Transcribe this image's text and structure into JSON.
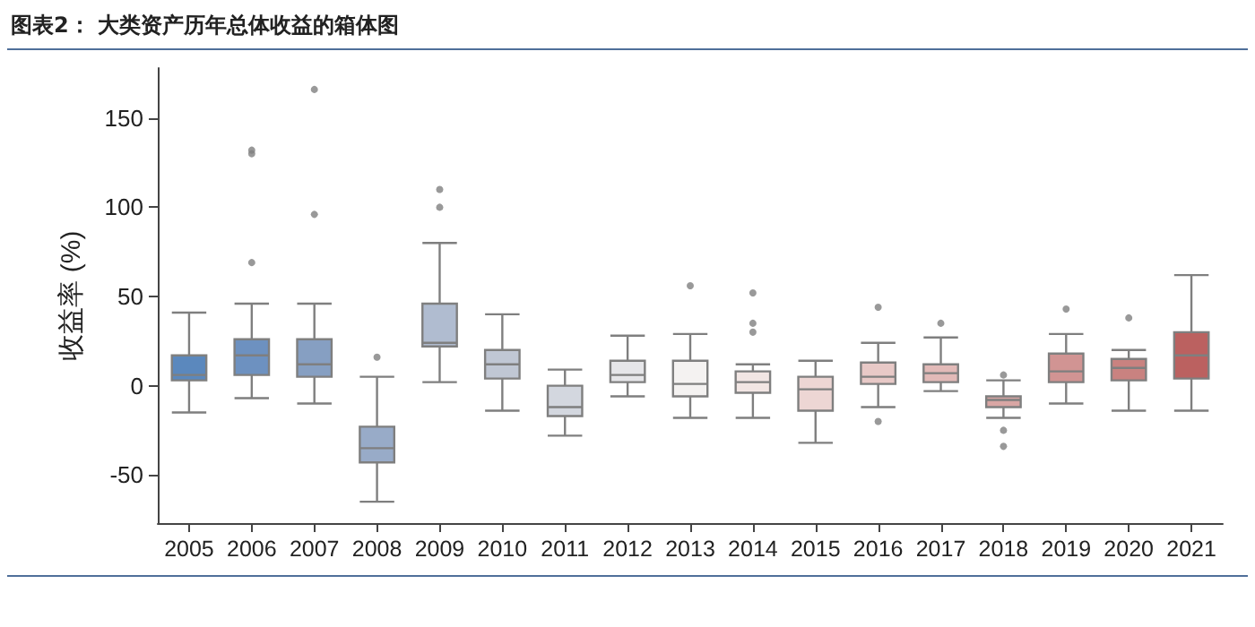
{
  "chart_data": {
    "type": "box",
    "title": "图表2：  大类资产历年总体收益的箱体图",
    "ylabel": "收益率 (%)",
    "categories": [
      "2005",
      "2006",
      "2007",
      "2008",
      "2009",
      "2010",
      "2011",
      "2012",
      "2013",
      "2014",
      "2015",
      "2016",
      "2017",
      "2018",
      "2019",
      "2020",
      "2021"
    ],
    "colors": [
      "#5b88bd",
      "#6d91c0",
      "#869fc2",
      "#98abc8",
      "#b0bcd0",
      "#c0c7d4",
      "#d3d7df",
      "#e6e6e9",
      "#f4f2f1",
      "#f2e6e4",
      "#edd6d4",
      "#e8c9c7",
      "#e2bab8",
      "#d9a6a4",
      "#d19493",
      "#c98280",
      "#bb6160"
    ],
    "boxes": [
      {
        "low": -15,
        "q1": 3,
        "median": 6,
        "q3": 17,
        "high": 41
      },
      {
        "low": -7,
        "q1": 6,
        "median": 17,
        "q3": 26,
        "high": 46,
        "outliers": [
          69,
          130,
          132
        ]
      },
      {
        "low": -10,
        "q1": 5,
        "median": 12,
        "q3": 26,
        "high": 46,
        "outliers": [
          96,
          166
        ]
      },
      {
        "low": -65,
        "q1": -43,
        "median": -35,
        "q3": -23,
        "high": 5,
        "outliers": [
          16
        ]
      },
      {
        "low": 2,
        "q1": 22,
        "median": 24,
        "q3": 46,
        "high": 80,
        "outliers": [
          100,
          110
        ]
      },
      {
        "low": -14,
        "q1": 4,
        "median": 12,
        "q3": 20,
        "high": 40
      },
      {
        "low": -28,
        "q1": -17,
        "median": -12,
        "q3": 0,
        "high": 9
      },
      {
        "low": -6,
        "q1": 2,
        "median": 6,
        "q3": 14,
        "high": 28
      },
      {
        "low": -18,
        "q1": -6,
        "median": 1,
        "q3": 14,
        "high": 29,
        "outliers": [
          56
        ]
      },
      {
        "low": -18,
        "q1": -4,
        "median": 2,
        "q3": 8,
        "high": 12,
        "outliers": [
          30,
          35,
          52
        ]
      },
      {
        "low": -32,
        "q1": -14,
        "median": -2,
        "q3": 5,
        "high": 14
      },
      {
        "low": -12,
        "q1": 1,
        "median": 5,
        "q3": 13,
        "high": 24,
        "outliers": [
          44,
          -20
        ]
      },
      {
        "low": -3,
        "q1": 2,
        "median": 7,
        "q3": 12,
        "high": 27,
        "outliers": [
          35
        ]
      },
      {
        "low": -18,
        "q1": -12,
        "median": -8,
        "q3": -6,
        "high": 3,
        "outliers": [
          6,
          -25,
          -34
        ]
      },
      {
        "low": -10,
        "q1": 2,
        "median": 8,
        "q3": 18,
        "high": 29,
        "outliers": [
          43
        ]
      },
      {
        "low": -14,
        "q1": 3,
        "median": 10,
        "q3": 15,
        "high": 20,
        "outliers": [
          38
        ]
      },
      {
        "low": -14,
        "q1": 4,
        "median": 17,
        "q3": 30,
        "high": 62
      }
    ],
    "ylim": [
      -77,
      178
    ],
    "yticks": [
      -50,
      0,
      50,
      100,
      150
    ],
    "grid": false
  }
}
